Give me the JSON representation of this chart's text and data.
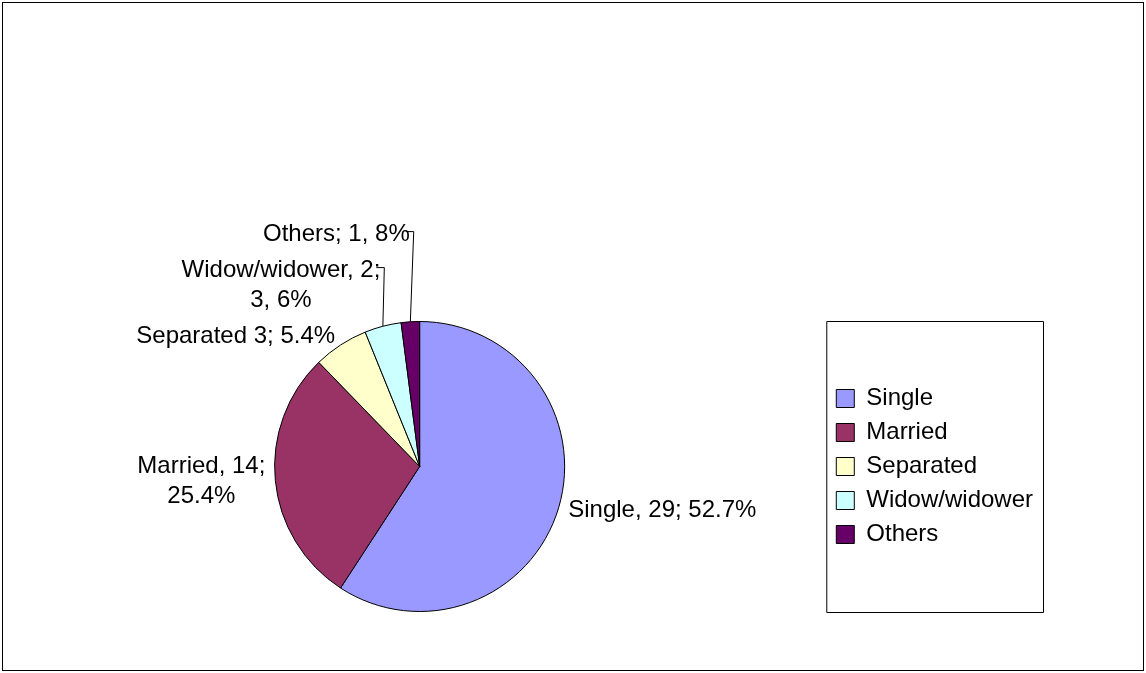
{
  "chart_data": {
    "type": "pie",
    "categories": [
      "Single",
      "Married",
      "Separated",
      "Widow/widower",
      "Others"
    ],
    "values": [
      29,
      14,
      3,
      2,
      1
    ],
    "colors": [
      "#9999ff",
      "#993366",
      "#ffffcc",
      "#ccffff",
      "#660066"
    ],
    "value_labels": [
      "Single, 29; 52.7%",
      "Married, 14; 25.4%",
      "Separated 3; 5.4%",
      "Widow/widower, 2; 3, 6%",
      "Others; 1, 8%"
    ],
    "legend": "right"
  }
}
